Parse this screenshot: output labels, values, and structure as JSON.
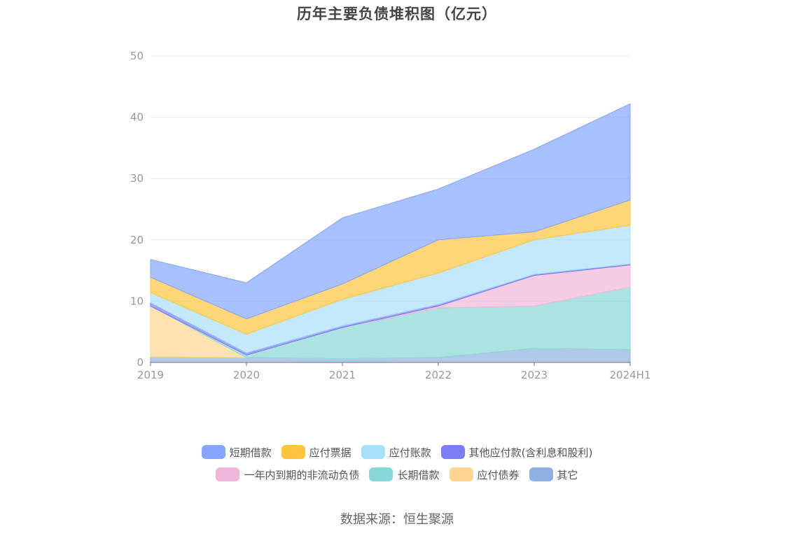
{
  "title": "历年主要负债堆积图（亿元）",
  "source": "数据来源：恒生聚源",
  "chart_data": {
    "type": "area",
    "stacked": true,
    "title": "历年主要负债堆积图（亿元）",
    "categories": [
      "2019",
      "2020",
      "2021",
      "2022",
      "2023",
      "2024H1"
    ],
    "ylim": [
      0,
      50
    ],
    "yticks": [
      "0",
      "10",
      "20",
      "30",
      "40",
      "50"
    ],
    "grid": true,
    "legend_position": "bottom",
    "series": [
      {
        "name": "其它",
        "color": "#8fb0e0",
        "values": [
          0.9,
          0.8,
          0.6,
          0.8,
          2.3,
          2.1
        ]
      },
      {
        "name": "应付债券",
        "color": "#ffd591",
        "values": [
          8.3,
          0.0,
          0.0,
          0.0,
          0.0,
          0.0
        ]
      },
      {
        "name": "长期借款",
        "color": "#87d7d7",
        "values": [
          0.0,
          0.4,
          5.1,
          8.1,
          6.9,
          10.2
        ]
      },
      {
        "name": "一年内到期的非流动负债",
        "color": "#f0b8d8",
        "values": [
          0.0,
          0.0,
          0.0,
          0.3,
          5.0,
          3.6
        ]
      },
      {
        "name": "其他应付款(含利息和股利)",
        "color": "#7b7ef5",
        "values": [
          0.6,
          0.4,
          0.3,
          0.3,
          0.2,
          0.2
        ]
      },
      {
        "name": "应付账款",
        "color": "#a9dffa",
        "values": [
          1.6,
          3.0,
          4.3,
          5.1,
          5.6,
          6.3
        ]
      },
      {
        "name": "应付票据",
        "color": "#ffc53d",
        "values": [
          2.5,
          2.5,
          2.5,
          5.4,
          1.3,
          4.1
        ]
      },
      {
        "name": "短期借款",
        "color": "#85a5ff",
        "values": [
          2.9,
          5.9,
          10.8,
          8.3,
          13.5,
          15.7
        ]
      }
    ],
    "legend_rows": [
      [
        "短期借款",
        "应付票据",
        "应付账款",
        "其他应付款(含利息和股利)"
      ],
      [
        "一年内到期的非流动负债",
        "长期借款",
        "应付债券",
        "其它"
      ]
    ]
  }
}
